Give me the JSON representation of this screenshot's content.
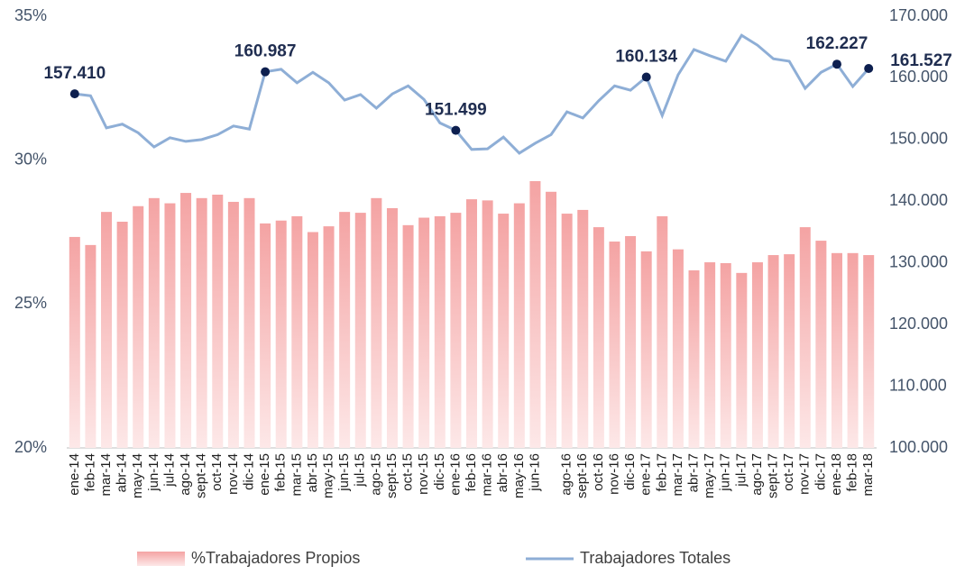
{
  "chart_data": {
    "type": "bar_line",
    "categories": [
      "ene-14",
      "feb-14",
      "mar-14",
      "abr-14",
      "may-14",
      "jun-14",
      "jul-14",
      "ago-14",
      "sept-14",
      "oct-14",
      "nov-14",
      "dic-14",
      "ene-15",
      "feb-15",
      "mar-15",
      "abr-15",
      "may-15",
      "jun-15",
      "jul-15",
      "ago-15",
      "sept-15",
      "oct-15",
      "nov-15",
      "dic-15",
      "ene-16",
      "feb-16",
      "mar-16",
      "abr-16",
      "may-16",
      "jun-16",
      null,
      "ago-16",
      "sept-16",
      "oct-16",
      "nov-16",
      "dic-16",
      "ene-17",
      "feb-17",
      "mar-17",
      "abr-17",
      "may-17",
      "jun-17",
      "jul-17",
      "ago-17",
      "sept-17",
      "oct-17",
      "nov-17",
      "dic-17",
      "ene-18",
      "feb-18",
      "mar-18"
    ],
    "series": [
      {
        "name": "%Trabajadores Propios",
        "type": "bar",
        "color": "#f4a3a3",
        "axis": "y",
        "values": [
          27.33,
          27.05,
          28.2,
          27.86,
          28.4,
          28.68,
          28.5,
          28.86,
          28.68,
          28.8,
          28.55,
          28.68,
          27.8,
          27.9,
          28.05,
          27.5,
          27.7,
          28.2,
          28.17,
          28.68,
          28.33,
          27.74,
          28.0,
          28.05,
          28.17,
          28.64,
          28.6,
          28.14,
          28.5,
          29.27,
          28.9,
          28.14,
          28.27,
          27.67,
          27.17,
          27.36,
          26.83,
          28.05,
          26.9,
          26.17,
          26.45,
          26.42,
          26.08,
          26.45,
          26.7,
          26.73,
          27.67,
          27.2,
          26.77,
          26.77,
          26.7
        ]
      },
      {
        "name": "Trabajadores Totales",
        "type": "line",
        "color": "#8eaed6",
        "marker_color": "#0d1f4f",
        "axis": "y2",
        "values": [
          157410,
          157100,
          151900,
          152500,
          151100,
          148800,
          150300,
          149700,
          150000,
          150800,
          152200,
          151700,
          160987,
          161400,
          159200,
          160900,
          159200,
          156400,
          157300,
          155100,
          157400,
          158700,
          156500,
          152700,
          151499,
          148400,
          148500,
          150400,
          147800,
          149400,
          150800,
          154500,
          153500,
          156300,
          158700,
          158000,
          160134,
          153900,
          160500,
          164600,
          163600,
          162700,
          166900,
          165300,
          163100,
          162700,
          158300,
          160900,
          162227,
          158600,
          161527
        ],
        "value_labels": [
          "157.410",
          null,
          null,
          null,
          null,
          null,
          null,
          null,
          null,
          null,
          null,
          null,
          "160.987",
          null,
          null,
          null,
          null,
          null,
          null,
          null,
          null,
          null,
          null,
          null,
          "151.499",
          null,
          null,
          null,
          null,
          null,
          null,
          null,
          null,
          null,
          null,
          null,
          "160.134",
          null,
          null,
          null,
          null,
          null,
          null,
          null,
          null,
          null,
          null,
          null,
          "162.227",
          null,
          "161.527"
        ]
      }
    ],
    "ylim": [
      20,
      35
    ],
    "yticks": [
      {
        "value": 20,
        "label": "20%"
      },
      {
        "value": 25,
        "label": "25%"
      },
      {
        "value": 30,
        "label": "30%"
      },
      {
        "value": 35,
        "label": "35%"
      }
    ],
    "y2lim": [
      100000,
      170000
    ],
    "y2ticks": [
      {
        "value": 100000,
        "label": "100.000"
      },
      {
        "value": 110000,
        "label": "110.000"
      },
      {
        "value": 120000,
        "label": "120.000"
      },
      {
        "value": 130000,
        "label": "130.000"
      },
      {
        "value": 140000,
        "label": "140.000"
      },
      {
        "value": 150000,
        "label": "150.000"
      },
      {
        "value": 160000,
        "label": "160.000"
      },
      {
        "value": 170000,
        "label": "170.000"
      }
    ],
    "legend": "bottom"
  }
}
